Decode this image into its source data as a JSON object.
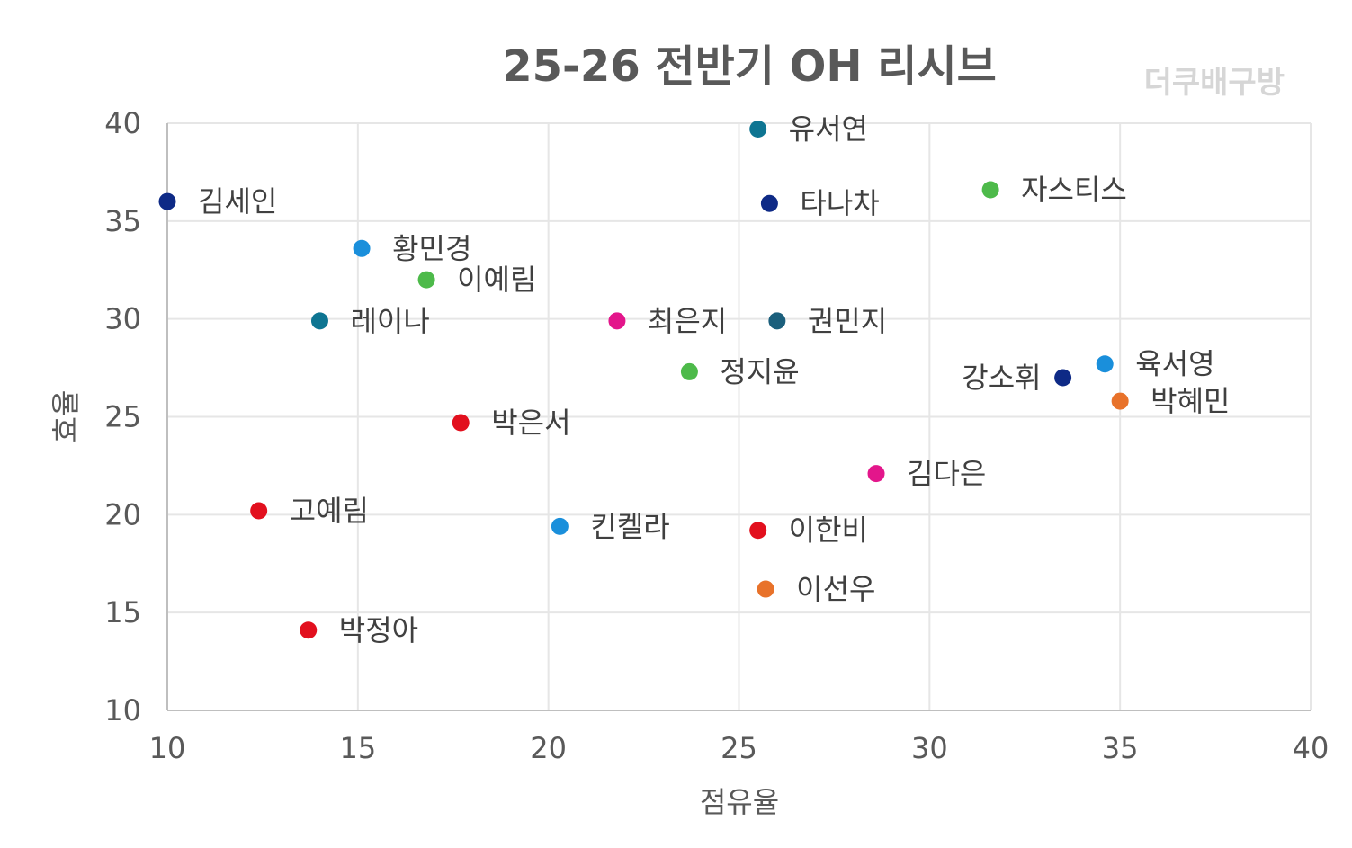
{
  "chart_data": {
    "type": "scatter",
    "title": "25-26 전반기 OH 리시브",
    "watermark": "더쿠배구방",
    "xlabel": "점유율",
    "ylabel": "효율",
    "xlim": [
      10,
      40
    ],
    "ylim": [
      10,
      40
    ],
    "xticks": [
      10,
      15,
      20,
      25,
      30,
      35,
      40
    ],
    "yticks": [
      10,
      15,
      20,
      25,
      30,
      35,
      40
    ],
    "grid": true,
    "points": [
      {
        "name": "유서연",
        "x": 25.5,
        "y": 39.7,
        "color": "#0e7592",
        "label_side": "right"
      },
      {
        "name": "김세인",
        "x": 10.0,
        "y": 36.0,
        "color": "#0e2a86",
        "label_side": "right"
      },
      {
        "name": "타나차",
        "x": 25.8,
        "y": 35.9,
        "color": "#0e2a86",
        "label_side": "right"
      },
      {
        "name": "자스티스",
        "x": 31.6,
        "y": 36.6,
        "color": "#4dba4a",
        "label_side": "right"
      },
      {
        "name": "황민경",
        "x": 15.1,
        "y": 33.6,
        "color": "#1a8fdb",
        "label_side": "right"
      },
      {
        "name": "이예림",
        "x": 16.8,
        "y": 32.0,
        "color": "#4dba4a",
        "label_side": "right"
      },
      {
        "name": "레이나",
        "x": 14.0,
        "y": 29.9,
        "color": "#0e7592",
        "label_side": "right"
      },
      {
        "name": "최은지",
        "x": 21.8,
        "y": 29.9,
        "color": "#e3168b",
        "label_side": "right"
      },
      {
        "name": "권민지",
        "x": 26.0,
        "y": 29.9,
        "color": "#1b5f7c",
        "label_side": "right"
      },
      {
        "name": "정지윤",
        "x": 23.7,
        "y": 27.3,
        "color": "#4dba4a",
        "label_side": "right"
      },
      {
        "name": "강소휘",
        "x": 33.5,
        "y": 27.0,
        "color": "#0e2a86",
        "label_side": "left"
      },
      {
        "name": "육서영",
        "x": 34.6,
        "y": 27.7,
        "color": "#1a8fdb",
        "label_side": "right"
      },
      {
        "name": "박혜민",
        "x": 35.0,
        "y": 25.8,
        "color": "#e8722a",
        "label_side": "right"
      },
      {
        "name": "박은서",
        "x": 17.7,
        "y": 24.7,
        "color": "#e2101e",
        "label_side": "right"
      },
      {
        "name": "김다은",
        "x": 28.6,
        "y": 22.1,
        "color": "#e3168b",
        "label_side": "right"
      },
      {
        "name": "고예림",
        "x": 12.4,
        "y": 20.2,
        "color": "#e2101e",
        "label_side": "right"
      },
      {
        "name": "킨켈라",
        "x": 20.3,
        "y": 19.4,
        "color": "#1a8fdb",
        "label_side": "right"
      },
      {
        "name": "이한비",
        "x": 25.5,
        "y": 19.2,
        "color": "#e2101e",
        "label_side": "right"
      },
      {
        "name": "이선우",
        "x": 25.7,
        "y": 16.2,
        "color": "#e8722a",
        "label_side": "right"
      },
      {
        "name": "박정아",
        "x": 13.7,
        "y": 14.1,
        "color": "#e2101e",
        "label_side": "right"
      }
    ]
  }
}
